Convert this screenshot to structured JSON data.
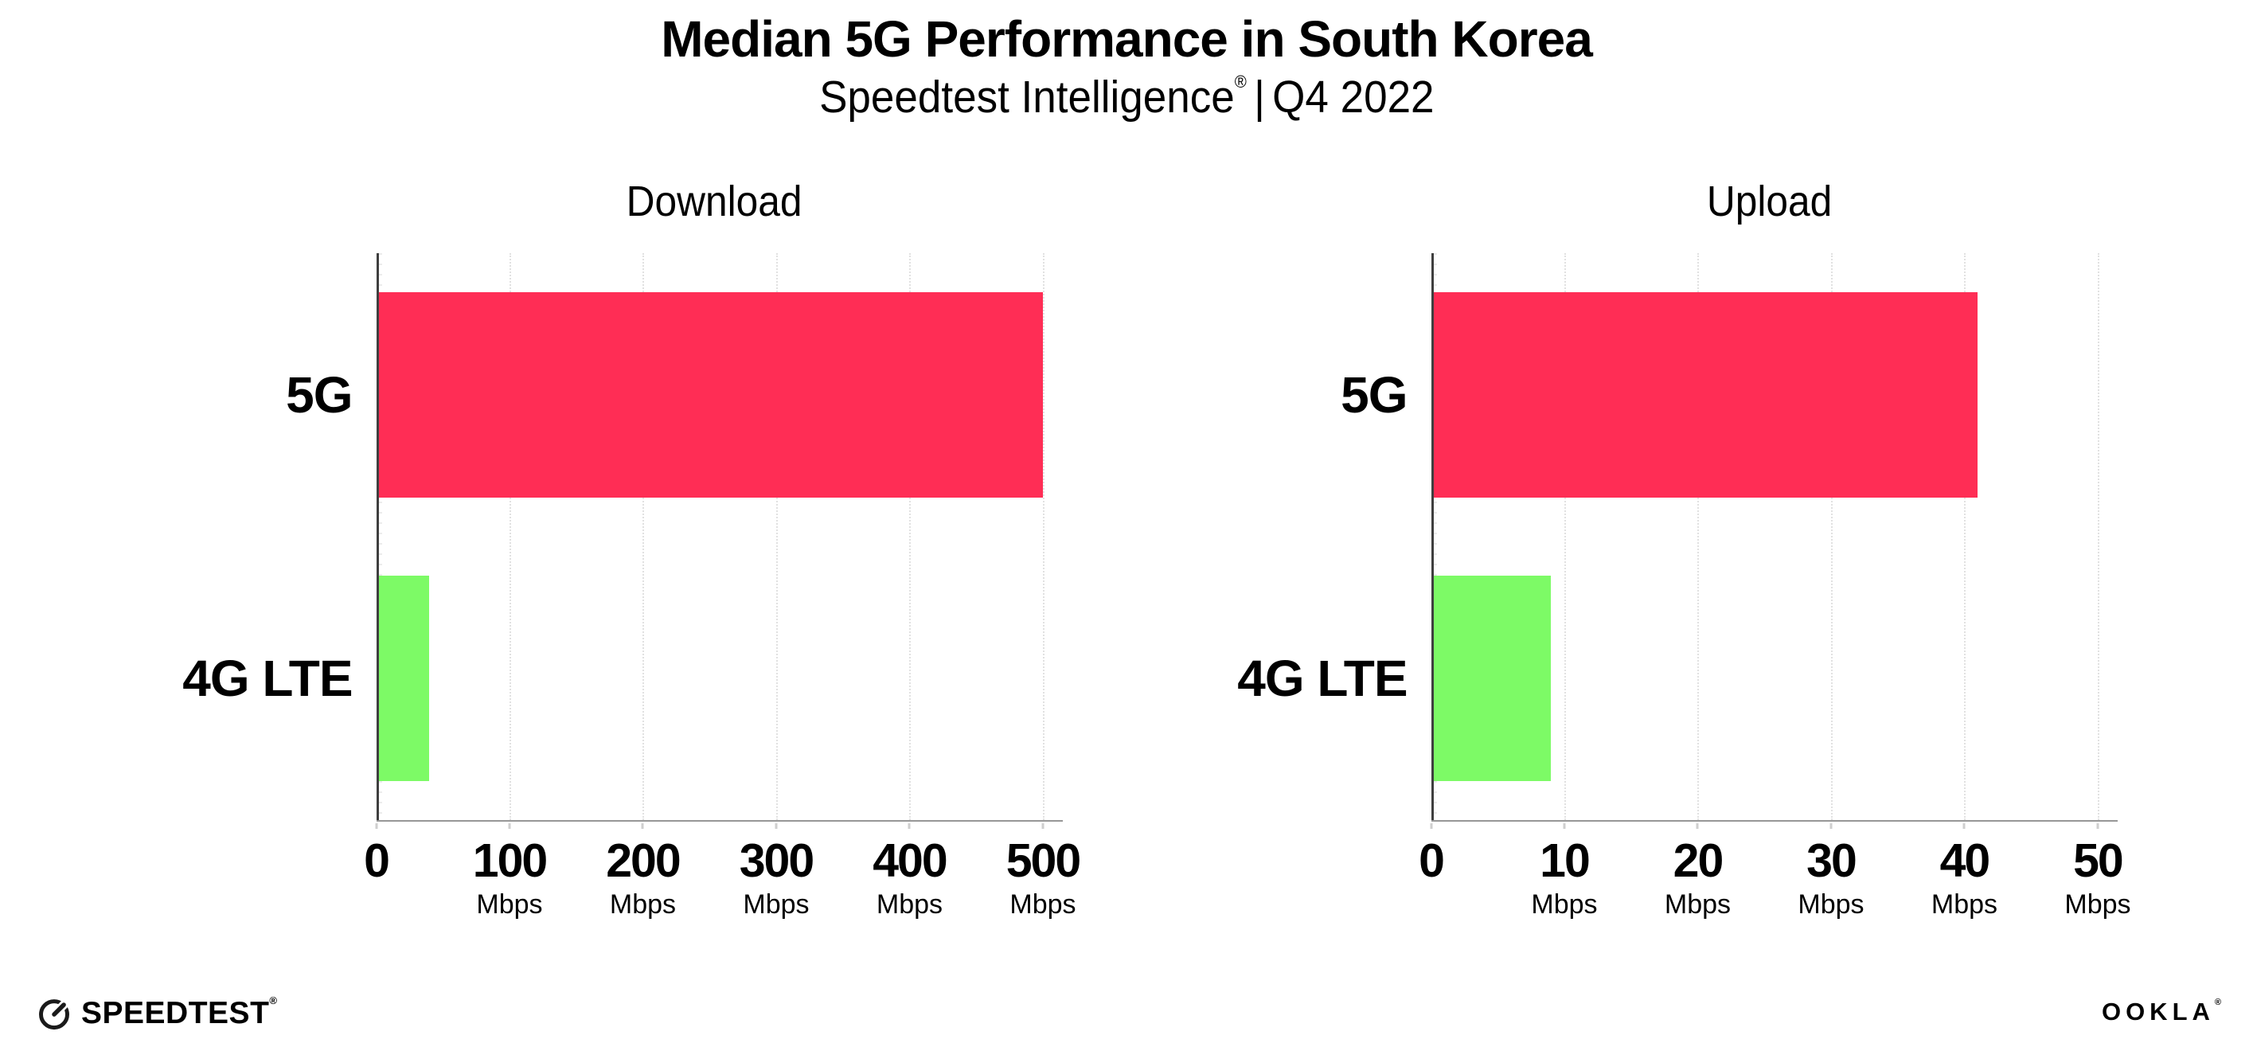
{
  "header": {
    "title": "Median 5G Performance in South Korea",
    "subtitle_brand": "Speedtest Intelligence",
    "subtitle_reg": "®",
    "subtitle_sep": "|",
    "subtitle_period": "Q4 2022"
  },
  "chart_data": [
    {
      "type": "bar",
      "orientation": "horizontal",
      "title": "Download",
      "categories": [
        "5G",
        "4G LTE"
      ],
      "values": [
        500,
        40
      ],
      "unit": "Mbps",
      "xlabel": "",
      "xlim": [
        0,
        500
      ],
      "xticks": [
        0,
        100,
        200,
        300,
        400,
        500
      ],
      "bar_colors": [
        "#ff2d55",
        "#7dfa66"
      ],
      "grid": "dotted-vertical",
      "legend": "none"
    },
    {
      "type": "bar",
      "orientation": "horizontal",
      "title": "Upload",
      "categories": [
        "5G",
        "4G LTE"
      ],
      "values": [
        41,
        9
      ],
      "unit": "Mbps",
      "xlabel": "",
      "xlim": [
        0,
        50
      ],
      "xticks": [
        0,
        10,
        20,
        30,
        40,
        50
      ],
      "bar_colors": [
        "#ff2d55",
        "#7dfa66"
      ],
      "grid": "dotted-vertical",
      "legend": "none"
    }
  ],
  "colors": {
    "bar_5g": "#ff2d55",
    "bar_4g_lte": "#7dfa66",
    "gridline": "#e1e1e1",
    "baseline": "#979797",
    "y_axis": "#3f3f3f",
    "text": "#000000"
  },
  "footer": {
    "speedtest_icon": "gauge-icon",
    "speedtest_label": "SPEEDTEST",
    "speedtest_reg": "®",
    "ookla_label": "OOKLA",
    "ookla_reg": "®"
  }
}
